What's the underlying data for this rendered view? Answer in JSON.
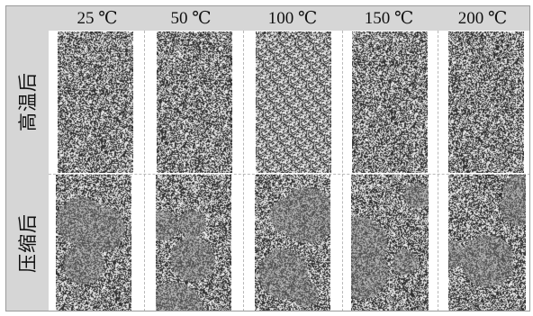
{
  "columns": [
    "25 ℃",
    "50 ℃",
    "100 ℃",
    "150 ℃",
    "200 ℃"
  ],
  "rows": [
    "高温后",
    "压缩后"
  ]
}
